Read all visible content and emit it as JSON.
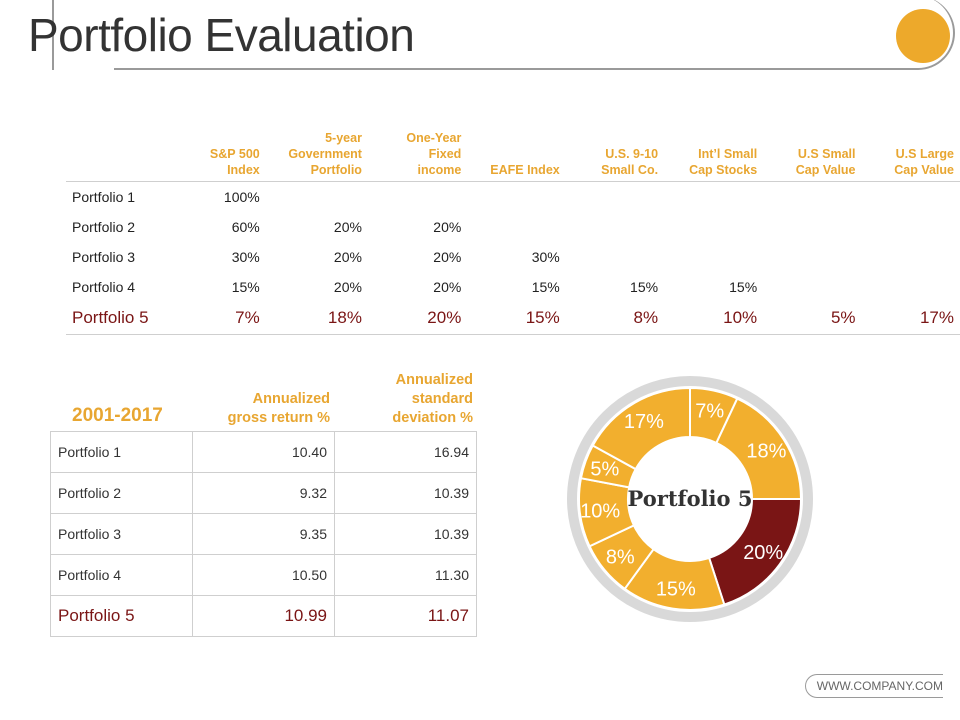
{
  "page": {
    "title": "Portfolio Evaluation",
    "footer": "WWW.COMPANY.COM",
    "accent_color": "#EDA92B",
    "highlight_color": "#7A1515"
  },
  "allocation_table": {
    "headers": [
      "",
      "S&P 500 Index",
      "5-year Government Portfolio",
      "One-Year Fixed income",
      "EAFE Index",
      "U.S. 9-10 Small Co.",
      "Int'l Small Cap Stocks",
      "U.S Small Cap Value",
      "U.S Large Cap Value"
    ],
    "header_lines": [
      [],
      [
        "S&P 500",
        "Index"
      ],
      [
        "5-year",
        "Government",
        "Portfolio"
      ],
      [
        "One-Year",
        "Fixed",
        "income"
      ],
      [
        "EAFE Index"
      ],
      [
        "U.S. 9-10",
        "Small Co."
      ],
      [
        "Int’l Small",
        "Cap Stocks"
      ],
      [
        "U.S Small",
        "Cap Value"
      ],
      [
        "U.S Large",
        "Cap Value"
      ]
    ],
    "rows": [
      [
        "Portfolio 1",
        "100%",
        "",
        "",
        "",
        "",
        "",
        "",
        ""
      ],
      [
        "Portfolio 2",
        "60%",
        "20%",
        "20%",
        "",
        "",
        "",
        "",
        ""
      ],
      [
        "Portfolio 3",
        "30%",
        "20%",
        "20%",
        "30%",
        "",
        "",
        "",
        ""
      ],
      [
        "Portfolio 4",
        "15%",
        "20%",
        "20%",
        "15%",
        "15%",
        "15%",
        "",
        ""
      ],
      [
        "Portfolio 5",
        "7%",
        "18%",
        "20%",
        "15%",
        "8%",
        "10%",
        "5%",
        "17%"
      ]
    ]
  },
  "returns_table": {
    "period": "2001-2017",
    "col1_header": [
      "Annualized",
      "gross return %"
    ],
    "col2_header": [
      "Annualized",
      "standard",
      "deviation %"
    ],
    "rows": [
      [
        "Portfolio 1",
        "10.40",
        "16.94"
      ],
      [
        "Portfolio 2",
        "9.32",
        "10.39"
      ],
      [
        "Portfolio 3",
        "9.35",
        "10.39"
      ],
      [
        "Portfolio 4",
        "10.50",
        "11.30"
      ],
      [
        "Portfolio 5",
        "10.99",
        "11.07"
      ]
    ]
  },
  "chart_data": {
    "type": "pie",
    "title": "Portfolio 5",
    "labels": [
      "7%",
      "18%",
      "20%",
      "15%",
      "8%",
      "10%",
      "5%",
      "17%"
    ],
    "values": [
      7,
      18,
      20,
      15,
      8,
      10,
      5,
      17
    ],
    "colors": [
      "#F2AF2E",
      "#F2AF2E",
      "#7A1515",
      "#F2AF2E",
      "#F2AF2E",
      "#F2AF2E",
      "#F2AF2E",
      "#F2AF2E"
    ],
    "ring_color": "#D9D9D9"
  }
}
